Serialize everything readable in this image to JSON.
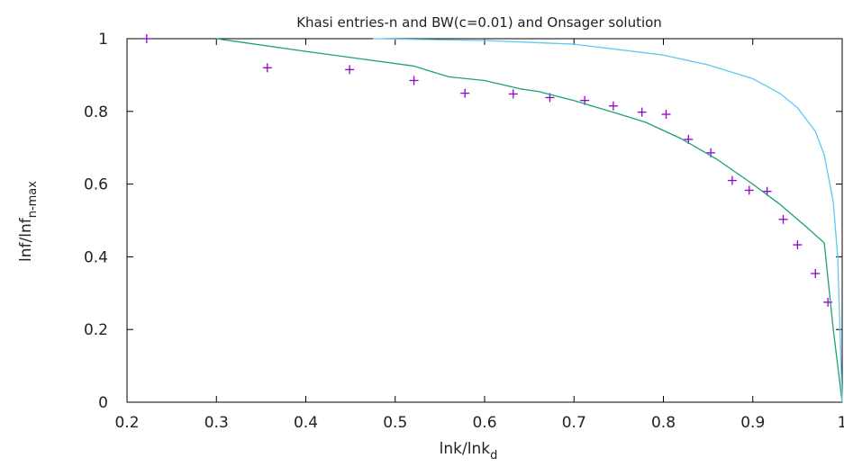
{
  "chart_data": {
    "type": "line",
    "title": "Khasi entries-n and BW(c=0.01) and Onsager solution",
    "xlabel": {
      "main": "lnk/lnk",
      "sub": "d"
    },
    "ylabel": {
      "main": "lnf/lnf",
      "sub": "n-max"
    },
    "xlim": [
      0.2,
      1.0
    ],
    "ylim": [
      0,
      1.0
    ],
    "xticks": [
      "0.2",
      "0.3",
      "0.4",
      "0.5",
      "0.6",
      "0.7",
      "0.8",
      "0.9",
      "1"
    ],
    "yticks": [
      "0",
      "0.2",
      "0.4",
      "0.6",
      "0.8",
      "1"
    ],
    "xtick_values": [
      0.2,
      0.3,
      0.4,
      0.5,
      0.6,
      0.7,
      0.8,
      0.9,
      1.0
    ],
    "ytick_values": [
      0,
      0.2,
      0.4,
      0.6,
      0.8,
      1.0
    ],
    "grid": false,
    "series": [
      {
        "kind": "scatter",
        "marker": "plus",
        "color": "#9400d3",
        "x": [
          0.222,
          0.357,
          0.449,
          0.521,
          0.578,
          0.632,
          0.673,
          0.712,
          0.744,
          0.776,
          0.803,
          0.828,
          0.853,
          0.877,
          0.896,
          0.916,
          0.934,
          0.95,
          0.97,
          0.984
        ],
        "y": [
          1.0,
          0.92,
          0.915,
          0.885,
          0.85,
          0.848,
          0.838,
          0.83,
          0.815,
          0.798,
          0.792,
          0.723,
          0.686,
          0.61,
          0.583,
          0.58,
          0.503,
          0.433,
          0.354,
          0.275
        ]
      },
      {
        "kind": "line",
        "color": "#1aa374",
        "x": [
          0.3,
          0.4,
          0.52,
          0.56,
          0.6,
          0.64,
          0.66,
          0.7,
          0.75,
          0.78,
          0.82,
          0.86,
          0.9,
          0.93,
          0.96,
          0.98,
          0.99,
          1.0
        ],
        "y": [
          1.0,
          0.965,
          0.925,
          0.895,
          0.885,
          0.862,
          0.855,
          0.83,
          0.793,
          0.77,
          0.725,
          0.668,
          0.6,
          0.545,
          0.482,
          0.438,
          0.2,
          0.0
        ]
      },
      {
        "kind": "line",
        "color": "#5ec8f2",
        "x": [
          0.475,
          0.6,
          0.7,
          0.8,
          0.85,
          0.9,
          0.93,
          0.95,
          0.97,
          0.98,
          0.99,
          0.995,
          1.0
        ],
        "y": [
          1.0,
          0.995,
          0.985,
          0.955,
          0.928,
          0.89,
          0.85,
          0.81,
          0.745,
          0.68,
          0.55,
          0.4,
          0.0
        ]
      }
    ]
  }
}
